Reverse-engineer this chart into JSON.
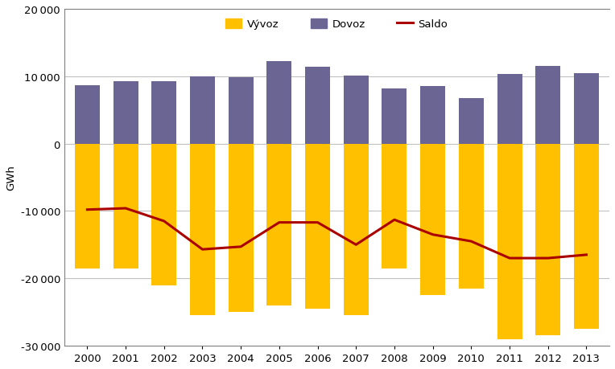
{
  "years": [
    2000,
    2001,
    2002,
    2003,
    2004,
    2005,
    2006,
    2007,
    2008,
    2009,
    2010,
    2011,
    2012,
    2013
  ],
  "vyvoz": [
    -18500,
    -18500,
    -21100,
    -25500,
    -25000,
    -24000,
    -24500,
    -25500,
    -18500,
    -22500,
    -21500,
    -29000,
    -28500,
    -27500
  ],
  "dovoz": [
    8700,
    9200,
    9300,
    10000,
    9800,
    12200,
    11400,
    10100,
    8200,
    8500,
    6700,
    10300,
    11500,
    10400
  ],
  "saldo": [
    -9800,
    -9600,
    -11500,
    -15700,
    -15300,
    -11700,
    -11700,
    -15000,
    -11300,
    -13500,
    -14500,
    -17000,
    -17000,
    -16500
  ],
  "vyvoz_color": "#FFC000",
  "dovoz_color": "#6B6594",
  "saldo_color": "#AA0000",
  "bar_width": 0.65,
  "ylim": [
    -30000,
    20000
  ],
  "yticks": [
    -30000,
    -20000,
    -10000,
    0,
    10000,
    20000
  ],
  "ylabel": "GWh",
  "legend_labels": [
    "Vývoz",
    "Dovoz",
    "Saldo"
  ],
  "background_color": "#ffffff",
  "grid_color": "#c0c0c0"
}
